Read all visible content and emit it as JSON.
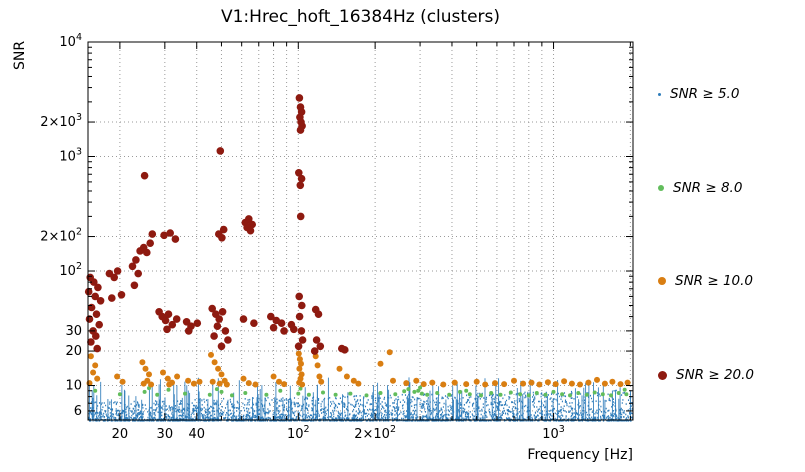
{
  "title": "V1:Hrec_hoft_16384Hz (clusters)",
  "axes": {
    "x": {
      "title": "Frequency [Hz]",
      "ticks": [
        {
          "v": 20,
          "t": "20",
          "sup": ""
        },
        {
          "v": 30,
          "t": "30",
          "sup": ""
        },
        {
          "v": 40,
          "t": "40",
          "sup": ""
        },
        {
          "v": 100,
          "t": "10",
          "sup": "2"
        },
        {
          "v": 200,
          "t": "2×10",
          "sup": "2"
        },
        {
          "v": 1000,
          "t": "10",
          "sup": "3"
        }
      ],
      "grid": [
        20,
        30,
        40,
        50,
        60,
        70,
        80,
        90,
        100,
        200,
        300,
        400,
        500,
        600,
        700,
        800,
        900,
        1000,
        2000
      ]
    },
    "y": {
      "title": "SNR",
      "ticks": [
        {
          "v": 10000,
          "t": "10",
          "sup": "4"
        },
        {
          "v": 2000,
          "t": "2×10",
          "sup": "3"
        },
        {
          "v": 1000,
          "t": "10",
          "sup": "3"
        },
        {
          "v": 200,
          "t": "2×10",
          "sup": "2"
        },
        {
          "v": 100,
          "t": "10",
          "sup": "2"
        },
        {
          "v": 30,
          "t": "30",
          "sup": ""
        },
        {
          "v": 20,
          "t": "20",
          "sup": ""
        },
        {
          "v": 10,
          "t": "10",
          "sup": ""
        },
        {
          "v": 6,
          "t": "6",
          "sup": ""
        }
      ],
      "grid": [
        6,
        10,
        20,
        30,
        100,
        200,
        1000,
        2000
      ]
    }
  },
  "chart_data": {
    "type": "scatter",
    "title": "V1:Hrec_hoft_16384Hz (clusters)",
    "xlabel": "Frequency [Hz]",
    "ylabel": "SNR",
    "xscale": "log",
    "yscale": "log",
    "xlim": [
      15,
      2048
    ],
    "ylim": [
      5,
      10000
    ],
    "grid": true,
    "legend_position": "right",
    "series": [
      {
        "name": "SNR ≥ 5.0",
        "color": "#2e7cba",
        "marker_px": 1.2,
        "legend_r": 1.5,
        "background_band": {
          "seed": 1337,
          "count": 3400,
          "snr_floor": 5.0,
          "band_top_left": 7.3,
          "band_top_right": 9.3,
          "spike_count": 130,
          "spike_max": 11.8,
          "note": "dense noise background of triggers with 5 <= SNR < 8, log-uniform in frequency across 15-2048 Hz, occasional narrow spikes up to SNR ~12"
        }
      },
      {
        "name": "SNR ≥ 8.0",
        "color": "#62bd5c",
        "marker_px": 2.0,
        "legend_r": 3,
        "points": [
          [
            16,
            9
          ],
          [
            20,
            8.4
          ],
          [
            25,
            8.8
          ],
          [
            26,
            9.5
          ],
          [
            28,
            8.3
          ],
          [
            31,
            9.2
          ],
          [
            36,
            8.5
          ],
          [
            45,
            8.3
          ],
          [
            48,
            9.3
          ],
          [
            50,
            8.8
          ],
          [
            55,
            8.2
          ],
          [
            62,
            8.6
          ],
          [
            75,
            8.3
          ],
          [
            85,
            9
          ],
          [
            100,
            8.5
          ],
          [
            102,
            9.4
          ],
          [
            110,
            8.3
          ],
          [
            125,
            8.7
          ],
          [
            140,
            8.3
          ],
          [
            160,
            8.5
          ],
          [
            185,
            8.2
          ],
          [
            210,
            8.6
          ],
          [
            240,
            8.4
          ],
          [
            260,
            8.9
          ],
          [
            270,
            9.3
          ],
          [
            285,
            8.8
          ],
          [
            295,
            9.0
          ],
          [
            300,
            9.6
          ],
          [
            305,
            8.5
          ],
          [
            320,
            8.3
          ],
          [
            350,
            8.6
          ],
          [
            390,
            8.3
          ],
          [
            430,
            8.8
          ],
          [
            455,
            9.0
          ],
          [
            470,
            8.4
          ],
          [
            520,
            8.2
          ],
          [
            570,
            8.6
          ],
          [
            620,
            8.3
          ],
          [
            680,
            8.7
          ],
          [
            740,
            8.4
          ],
          [
            800,
            8.2
          ],
          [
            860,
            8.6
          ],
          [
            930,
            8.3
          ],
          [
            1000,
            8.8
          ],
          [
            1080,
            8.4
          ],
          [
            1160,
            8.2
          ],
          [
            1250,
            8.6
          ],
          [
            1350,
            8.3
          ],
          [
            1450,
            8.7
          ],
          [
            1560,
            8.4
          ],
          [
            1680,
            8.2
          ],
          [
            1800,
            8.6
          ],
          [
            1900,
            9.2
          ],
          [
            1930,
            8.4
          ]
        ]
      },
      {
        "name": "SNR ≥ 10.0",
        "color": "#d97e12",
        "marker_px": 3.0,
        "legend_r": 4,
        "points": [
          [
            15.4,
            18
          ],
          [
            16.0,
            15
          ],
          [
            15.7,
            13
          ],
          [
            16.3,
            11.5
          ],
          [
            15.2,
            10.5
          ],
          [
            19.5,
            12
          ],
          [
            20.5,
            10.8
          ],
          [
            24.5,
            16
          ],
          [
            25.2,
            14
          ],
          [
            26.0,
            12.5
          ],
          [
            25.6,
            11
          ],
          [
            24.8,
            10.4
          ],
          [
            26.5,
            10.2
          ],
          [
            29.5,
            13
          ],
          [
            30.8,
            11.5
          ],
          [
            32.0,
            10.6
          ],
          [
            31.2,
            10.2
          ],
          [
            33.5,
            12
          ],
          [
            37,
            11
          ],
          [
            39,
            10.4
          ],
          [
            41,
            10.8
          ],
          [
            45.5,
            18.5
          ],
          [
            47.0,
            16
          ],
          [
            48.5,
            14
          ],
          [
            50.0,
            12.5
          ],
          [
            51.5,
            11
          ],
          [
            49.2,
            10.4
          ],
          [
            52.5,
            10.2
          ],
          [
            46.2,
            10.8
          ],
          [
            61,
            11.5
          ],
          [
            64,
            10.5
          ],
          [
            68,
            10.2
          ],
          [
            80,
            12
          ],
          [
            84,
            10.8
          ],
          [
            88,
            10.3
          ],
          [
            100.5,
            19
          ],
          [
            101.5,
            17
          ],
          [
            102.5,
            15.5
          ],
          [
            101.0,
            14
          ],
          [
            103.0,
            12.5
          ],
          [
            102.0,
            11.5
          ],
          [
            100.8,
            10.6
          ],
          [
            103.5,
            10.2
          ],
          [
            117,
            18
          ],
          [
            119,
            15
          ],
          [
            121,
            12
          ],
          [
            123,
            10.8
          ],
          [
            145,
            14
          ],
          [
            155,
            12
          ],
          [
            165,
            11
          ],
          [
            172,
            10.4
          ],
          [
            210,
            15.5
          ],
          [
            228,
            19.5
          ],
          [
            235,
            11
          ],
          [
            265,
            10.5
          ],
          [
            290,
            11
          ],
          [
            310,
            10.3
          ],
          [
            335,
            10.6
          ],
          [
            370,
            10.2
          ],
          [
            410,
            10.6
          ],
          [
            455,
            10.3
          ],
          [
            500,
            10.8
          ],
          [
            540,
            10.2
          ],
          [
            590,
            10.5
          ],
          [
            640,
            10.3
          ],
          [
            700,
            11
          ],
          [
            760,
            10.4
          ],
          [
            820,
            10.6
          ],
          [
            880,
            10.2
          ],
          [
            950,
            10.7
          ],
          [
            1020,
            10.3
          ],
          [
            1100,
            10.9
          ],
          [
            1180,
            10.4
          ],
          [
            1270,
            10.2
          ],
          [
            1370,
            10.6
          ],
          [
            1480,
            11.2
          ],
          [
            1590,
            10.4
          ],
          [
            1700,
            10.8
          ],
          [
            1830,
            10.3
          ],
          [
            1950,
            10.6
          ]
        ]
      },
      {
        "name": "SNR ≥ 20.0",
        "color": "#8e1a10",
        "marker_px": 3.8,
        "legend_r": 4.5,
        "points": [
          [
            15.3,
            88
          ],
          [
            15.8,
            80
          ],
          [
            16.4,
            72
          ],
          [
            15.1,
            66
          ],
          [
            16.0,
            60
          ],
          [
            16.8,
            55
          ],
          [
            15.5,
            48
          ],
          [
            16.2,
            42
          ],
          [
            15.2,
            38
          ],
          [
            16.6,
            34
          ],
          [
            15.7,
            30
          ],
          [
            16.1,
            27
          ],
          [
            15.4,
            24
          ],
          [
            16.3,
            21
          ],
          [
            18.2,
            95
          ],
          [
            19.0,
            88
          ],
          [
            19.6,
            100
          ],
          [
            18.6,
            58
          ],
          [
            20.3,
            62
          ],
          [
            22.4,
            110
          ],
          [
            23.1,
            125
          ],
          [
            24.0,
            150
          ],
          [
            24.8,
            160
          ],
          [
            25.5,
            145
          ],
          [
            26.3,
            175
          ],
          [
            25.0,
            680
          ],
          [
            23.6,
            95
          ],
          [
            26.8,
            210
          ],
          [
            22.8,
            75
          ],
          [
            28.5,
            44
          ],
          [
            29.3,
            40
          ],
          [
            30.2,
            37
          ],
          [
            31.0,
            42
          ],
          [
            32.1,
            34
          ],
          [
            30.6,
            31
          ],
          [
            33.4,
            38
          ],
          [
            29.8,
            205
          ],
          [
            31.5,
            215
          ],
          [
            33.0,
            190
          ],
          [
            36.5,
            36
          ],
          [
            38.0,
            33
          ],
          [
            40.2,
            35
          ],
          [
            37.2,
            30
          ],
          [
            46.0,
            47
          ],
          [
            47.5,
            42
          ],
          [
            49.0,
            38
          ],
          [
            50.5,
            44
          ],
          [
            48.2,
            33
          ],
          [
            51.8,
            30
          ],
          [
            46.8,
            27
          ],
          [
            53.0,
            25
          ],
          [
            50.0,
            22
          ],
          [
            49.5,
            1120
          ],
          [
            48.8,
            210
          ],
          [
            50.2,
            195
          ],
          [
            51.0,
            230
          ],
          [
            62,
            265
          ],
          [
            64,
            285
          ],
          [
            66,
            255
          ],
          [
            63,
            240
          ],
          [
            65,
            225
          ],
          [
            61,
            38
          ],
          [
            67,
            35
          ],
          [
            78,
            40
          ],
          [
            82,
            37
          ],
          [
            86,
            35
          ],
          [
            80,
            32
          ],
          [
            88,
            30
          ],
          [
            94,
            34
          ],
          [
            96,
            31
          ],
          [
            101,
            3250
          ],
          [
            102,
            2700
          ],
          [
            103,
            2450
          ],
          [
            101.5,
            2200
          ],
          [
            102.5,
            2000
          ],
          [
            103.5,
            1850
          ],
          [
            102,
            1700
          ],
          [
            100.5,
            720
          ],
          [
            103,
            640
          ],
          [
            101.8,
            560
          ],
          [
            102.2,
            300
          ],
          [
            100.8,
            60
          ],
          [
            103.2,
            50
          ],
          [
            101.2,
            40
          ],
          [
            102.8,
            30
          ],
          [
            100.3,
            22
          ],
          [
            104,
            25
          ],
          [
            117,
            46
          ],
          [
            120,
            42
          ],
          [
            118,
            25
          ],
          [
            122,
            22
          ],
          [
            116,
            20
          ],
          [
            148,
            21
          ],
          [
            152,
            20.5
          ]
        ]
      }
    ]
  }
}
